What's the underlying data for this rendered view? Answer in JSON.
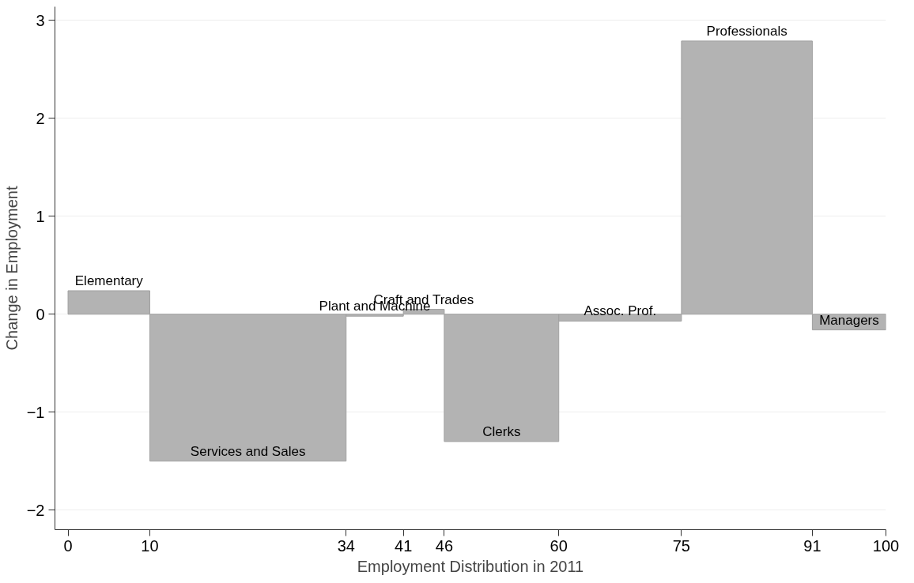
{
  "chart_data": {
    "type": "histogram",
    "xlabel": "Employment Distribution in 2011",
    "ylabel": "Change in Employment",
    "bins": [
      0,
      10,
      34,
      41,
      46,
      60,
      75,
      91,
      100
    ],
    "values": [
      0.24,
      -1.5,
      -0.02,
      0.05,
      -1.3,
      -0.07,
      2.79,
      -0.16
    ],
    "color": "#b3b3b3",
    "xlim": [
      -1.6,
      100
    ],
    "xticks": [
      0,
      10,
      34,
      41,
      46,
      60,
      75,
      91,
      100
    ],
    "ylim": [
      -2.2,
      3.14
    ],
    "yticks": [
      -2,
      -1,
      0,
      1,
      2,
      3
    ],
    "grid": "y",
    "annotations": [
      {
        "text": "Elementary",
        "x": 5,
        "y": 0.24
      },
      {
        "text": "Services and Sales",
        "x": 22,
        "y": -1.5
      },
      {
        "text": "Plant and Machine",
        "x": 37.5,
        "y": -0.02
      },
      {
        "text": "Craft and Trades",
        "x": 43.5,
        "y": 0.05
      },
      {
        "text": "Clerks",
        "x": 53,
        "y": -1.3
      },
      {
        "text": "Assoc. Prof.",
        "x": 67.5,
        "y": -0.07
      },
      {
        "text": "Professionals",
        "x": 83,
        "y": 2.79
      },
      {
        "text": "Managers",
        "x": 95.5,
        "y": -0.16
      }
    ]
  }
}
